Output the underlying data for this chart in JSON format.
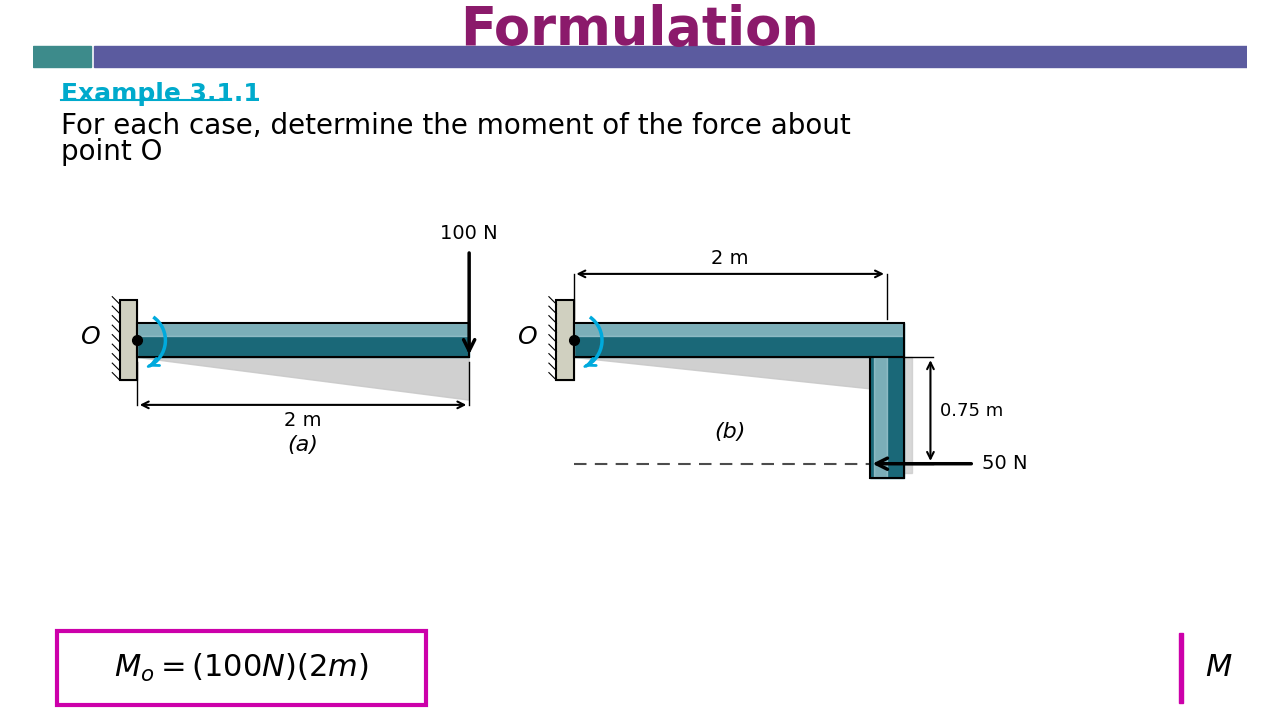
{
  "title": "Formulation",
  "title_color": "#8B1A6B",
  "header_bar_color": "#5B5B9F",
  "header_teal_color": "#3D8B8B",
  "example_label": "Example 3.1.1",
  "example_color": "#00AACC",
  "problem_text_line1": "For each case, determine the moment of the force about",
  "problem_text_line2": "point O",
  "beam_color_light": "#B0D4DC",
  "beam_color_dark": "#1A6878",
  "wall_color": "#D0D0C0",
  "shadow_color": "#C8C8C8",
  "rotation_arrow_color": "#00AADD",
  "label_a": "(a)",
  "label_b": "(b)",
  "box_color": "#CC00AA"
}
